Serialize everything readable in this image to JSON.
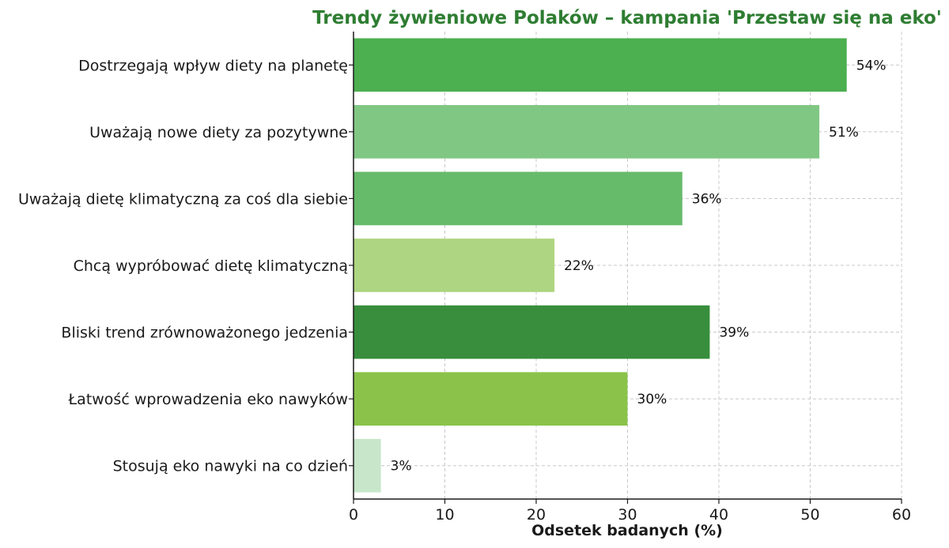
{
  "chart_data": {
    "type": "bar",
    "orientation": "horizontal",
    "title": "Trendy żywieniowe Polaków – kampania 'Przestaw się na eko'",
    "xlabel": "Odsetek badanych (%)",
    "ylabel": "",
    "xlim": [
      0,
      60
    ],
    "xticks": [
      "0",
      "10",
      "20",
      "30",
      "40",
      "50",
      "60"
    ],
    "grid": true,
    "categories": [
      "Dostrzegają wpływ diety na planetę",
      "Uważają nowe diety za pozytywne",
      "Uważają dietę klimatyczną za coś dla siebie",
      "Chcą wypróbować dietę klimatyczną",
      "Bliski trend zrównoważonego jedzenia",
      "Łatwość wprowadzenia eko nawyków",
      "Stosują eko nawyki na co dzień"
    ],
    "values": [
      54,
      51,
      36,
      22,
      39,
      30,
      3
    ],
    "value_labels": [
      "54%",
      "51%",
      "36%",
      "22%",
      "39%",
      "30%",
      "3%"
    ],
    "colors": [
      "#4caf50",
      "#81c784",
      "#66bb6a",
      "#aed581",
      "#388e3c",
      "#8bc34a",
      "#c8e6c9"
    ],
    "title_color": "#2e7d32"
  }
}
